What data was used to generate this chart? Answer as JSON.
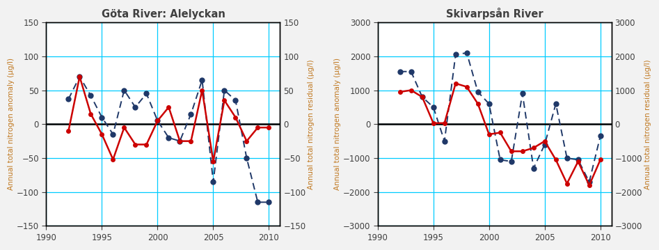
{
  "chart1": {
    "title": "Göta River: Alelyckan",
    "red_years": [
      1992,
      1993,
      1994,
      1995,
      1996,
      1997,
      1998,
      1999,
      2000,
      2001,
      2002,
      2003,
      2004,
      2005,
      2006,
      2007,
      2008,
      2009,
      2010
    ],
    "red_values": [
      -10,
      70,
      15,
      -15,
      -52,
      -5,
      -30,
      -30,
      5,
      25,
      -25,
      -25,
      50,
      -55,
      35,
      10,
      -25,
      -5,
      -5
    ],
    "blue_years": [
      1992,
      1993,
      1994,
      1995,
      1996,
      1997,
      1998,
      1999,
      2000,
      2001,
      2002,
      2003,
      2004,
      2005,
      2006,
      2007,
      2008,
      2009,
      2010
    ],
    "blue_values": [
      37,
      70,
      42,
      10,
      -15,
      50,
      25,
      45,
      5,
      -20,
      -25,
      15,
      65,
      -85,
      50,
      35,
      -50,
      -115,
      -115
    ],
    "ylim": [
      -150,
      150
    ],
    "yticks": [
      -150,
      -100,
      -50,
      0,
      50,
      100,
      150
    ],
    "ylabel_left": "Annual total nitrogen anomaly (μg/l)",
    "ylabel_right": "Annual total nitrogen residual (μg/l)",
    "xlim": [
      1990,
      2011
    ],
    "xticks": [
      1990,
      1995,
      2000,
      2005,
      2010
    ]
  },
  "chart2": {
    "title": "Skivarpsån River",
    "red_years": [
      1992,
      1993,
      1994,
      1995,
      1996,
      1997,
      1998,
      1999,
      2000,
      2001,
      2002,
      2003,
      2004,
      2005,
      2006,
      2007,
      2008,
      2009,
      2010
    ],
    "red_values": [
      950,
      1000,
      800,
      30,
      30,
      1200,
      1100,
      600,
      -300,
      -250,
      -800,
      -800,
      -700,
      -500,
      -1050,
      -1750,
      -1100,
      -1800,
      -1050
    ],
    "blue_years": [
      1992,
      1993,
      1994,
      1995,
      1996,
      1997,
      1998,
      1999,
      2000,
      2001,
      2002,
      2003,
      2004,
      2005,
      2006,
      2007,
      2008,
      2009,
      2010
    ],
    "blue_values": [
      1550,
      1550,
      800,
      500,
      -500,
      2050,
      2100,
      950,
      600,
      -1050,
      -1100,
      900,
      -1300,
      -600,
      600,
      -1000,
      -1050,
      -1700,
      -350
    ],
    "ylim": [
      -3000,
      3000
    ],
    "yticks": [
      -3000,
      -2000,
      -1000,
      0,
      1000,
      2000,
      3000
    ],
    "ylabel_left": "Annual total nitrogen anomaly (μg/l)",
    "ylabel_right": "Annual total nitrogen residual (μg/l)",
    "xlim": [
      1990,
      2011
    ],
    "xticks": [
      1990,
      1995,
      2000,
      2005,
      2010
    ]
  },
  "red_color": "#cc0000",
  "blue_color": "#1f3868",
  "grid_color": "#00ccff",
  "title_color": "#404040",
  "axis_label_color": "#c07820",
  "tick_label_color": "#404040",
  "zero_line_color": "#000000",
  "bg_color": "#f2f2f2",
  "figsize": [
    9.47,
    3.59
  ],
  "dpi": 100
}
